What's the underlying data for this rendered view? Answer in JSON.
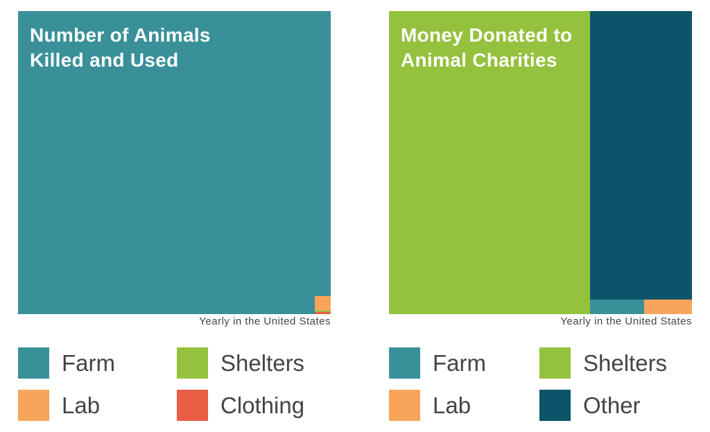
{
  "colors": {
    "farm": "#3A9099",
    "lab": "#F8A55B",
    "shelters": "#94C13E",
    "clothing": "#E75E45",
    "other": "#0C5467"
  },
  "chart_data": [
    {
      "type": "treemap",
      "title": "Number of Animals Killed and Used",
      "note": "Yearly in the United States",
      "series": [
        {
          "name": "Farm",
          "share": 0.997
        },
        {
          "name": "Lab",
          "share": 0.0025
        },
        {
          "name": "Shelters",
          "share": 0.0002
        },
        {
          "name": "Clothing",
          "share": 0.0006
        }
      ],
      "legend": [
        "Farm",
        "Shelters",
        "Lab",
        "Clothing"
      ]
    },
    {
      "type": "treemap",
      "title": "Money Donated to Animal Charities",
      "note": "Yearly in the United States",
      "series": [
        {
          "name": "Shelters",
          "share": 0.66
        },
        {
          "name": "Other",
          "share": 0.32
        },
        {
          "name": "Farm",
          "share": 0.01
        },
        {
          "name": "Lab",
          "share": 0.01
        }
      ],
      "legend": [
        "Farm",
        "Shelters",
        "Lab",
        "Other"
      ]
    }
  ],
  "left": {
    "title_1": "Number of Animals",
    "title_2": "Killed and Used"
  },
  "right": {
    "title_1": "Money Donated to",
    "title_2": "Animal Charities"
  }
}
